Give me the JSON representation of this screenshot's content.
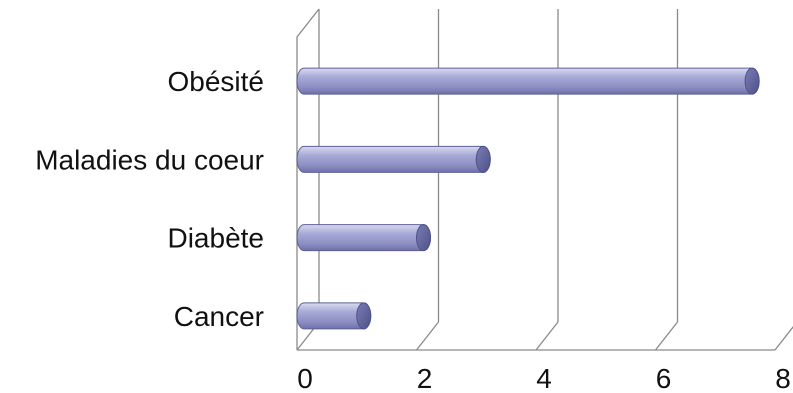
{
  "chart_data": {
    "type": "bar",
    "orientation": "horizontal",
    "style": "3d-cylinder",
    "categories": [
      "Cancer",
      "Diabète",
      "Maladies du coeur",
      "Obésité"
    ],
    "values": [
      1,
      2,
      3,
      7.5
    ],
    "xlim": [
      0,
      8
    ],
    "xticks": [
      0,
      2,
      4,
      6,
      8
    ],
    "tick_labels": [
      "0",
      "2",
      "4",
      "6",
      "8"
    ],
    "grid": true,
    "legend": "none",
    "colors": {
      "bar_fill": "#9a9ccc",
      "bar_cap": "#5e6196",
      "grid": "#8a8a8a"
    }
  }
}
